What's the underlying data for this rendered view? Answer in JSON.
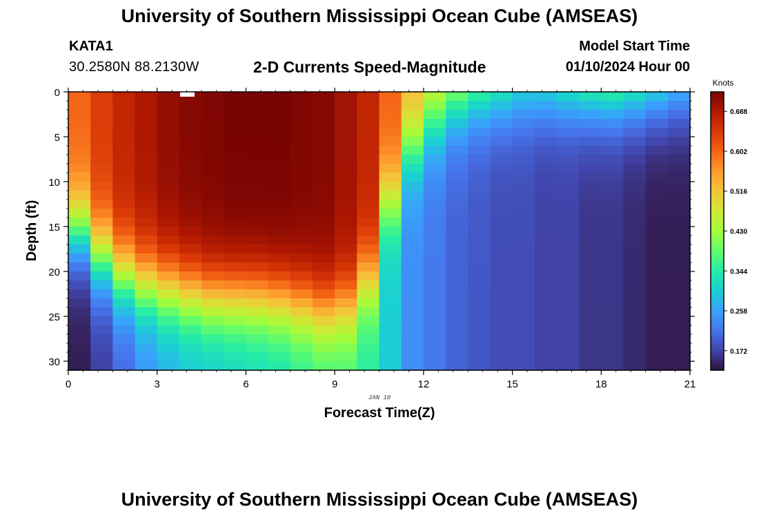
{
  "header": {
    "title": "University of Southern Mississippi Ocean Cube (AMSEAS)",
    "station_id": "KATA1",
    "station_coords": "30.2580N  88.2130W",
    "plot_title": "2-D Currents Speed-Magnitude",
    "model_start_label": "Model Start Time",
    "model_start_value": "01/10/2024 Hour 00"
  },
  "footer": {
    "title": "University of Southern Mississippi Ocean Cube (AMSEAS)"
  },
  "chart_data": {
    "type": "heatmap",
    "title": "2-D Currents Speed-Magnitude",
    "xlabel": "Forecast Time(Z)",
    "ylabel": "Depth (ft)",
    "x_sublabel": "JAN 10",
    "xlim": [
      0,
      21
    ],
    "ylim": [
      31,
      0
    ],
    "xticks": [
      "0",
      "3",
      "6",
      "9",
      "12",
      "15",
      "18",
      "21"
    ],
    "yticks": [
      "0",
      "5",
      "10",
      "15",
      "20",
      "25",
      "30"
    ],
    "colorbar": {
      "label": "Knots",
      "ticks": [
        "0.688",
        "0.602",
        "0.516",
        "0.430",
        "0.344",
        "0.258",
        "0.172"
      ],
      "range": [
        0.13,
        0.73
      ]
    },
    "colormap": [
      "#30123b",
      "#4145ab",
      "#4675ed",
      "#39a2fc",
      "#1bcfd4",
      "#24eca6",
      "#61fc6c",
      "#a4fc3b",
      "#d1e834",
      "#f3c63a",
      "#fe9b2d",
      "#f36315",
      "#d93806",
      "#b11901",
      "#7a0403"
    ],
    "time_hours": [
      0,
      0.75,
      1.5,
      2.25,
      3,
      3.75,
      4.5,
      5.25,
      6,
      6.75,
      7.5,
      8.25,
      9,
      9.75,
      10.5,
      11.25,
      12,
      12.75,
      13.5,
      14.25,
      15,
      15.75,
      16.5,
      17.25,
      18,
      18.75,
      19.5,
      20.25
    ],
    "surface_speed_knots": [
      0.6,
      0.64,
      0.67,
      0.69,
      0.71,
      0.72,
      0.725,
      0.73,
      0.73,
      0.73,
      0.725,
      0.72,
      0.7,
      0.67,
      0.6,
      0.52,
      0.45,
      0.4,
      0.36,
      0.33,
      0.3,
      0.3,
      0.32,
      0.34,
      0.35,
      0.33,
      0.3,
      0.27
    ],
    "transition_depth_ft": [
      15.5,
      18.5,
      20.5,
      21.5,
      22,
      22.5,
      23,
      23,
      23,
      23.3,
      23.8,
      24.5,
      24,
      21,
      12,
      6,
      3,
      1,
      0,
      0,
      0,
      0,
      0,
      0,
      0,
      0,
      0,
      0
    ],
    "bottom_speed_knots": [
      0.14,
      0.17,
      0.21,
      0.25,
      0.28,
      0.3,
      0.31,
      0.32,
      0.33,
      0.34,
      0.36,
      0.38,
      0.38,
      0.35,
      0.3,
      0.24,
      0.22,
      0.2,
      0.19,
      0.18,
      0.18,
      0.17,
      0.17,
      0.16,
      0.16,
      0.15,
      0.14,
      0.14
    ],
    "depth_levels": 31
  }
}
